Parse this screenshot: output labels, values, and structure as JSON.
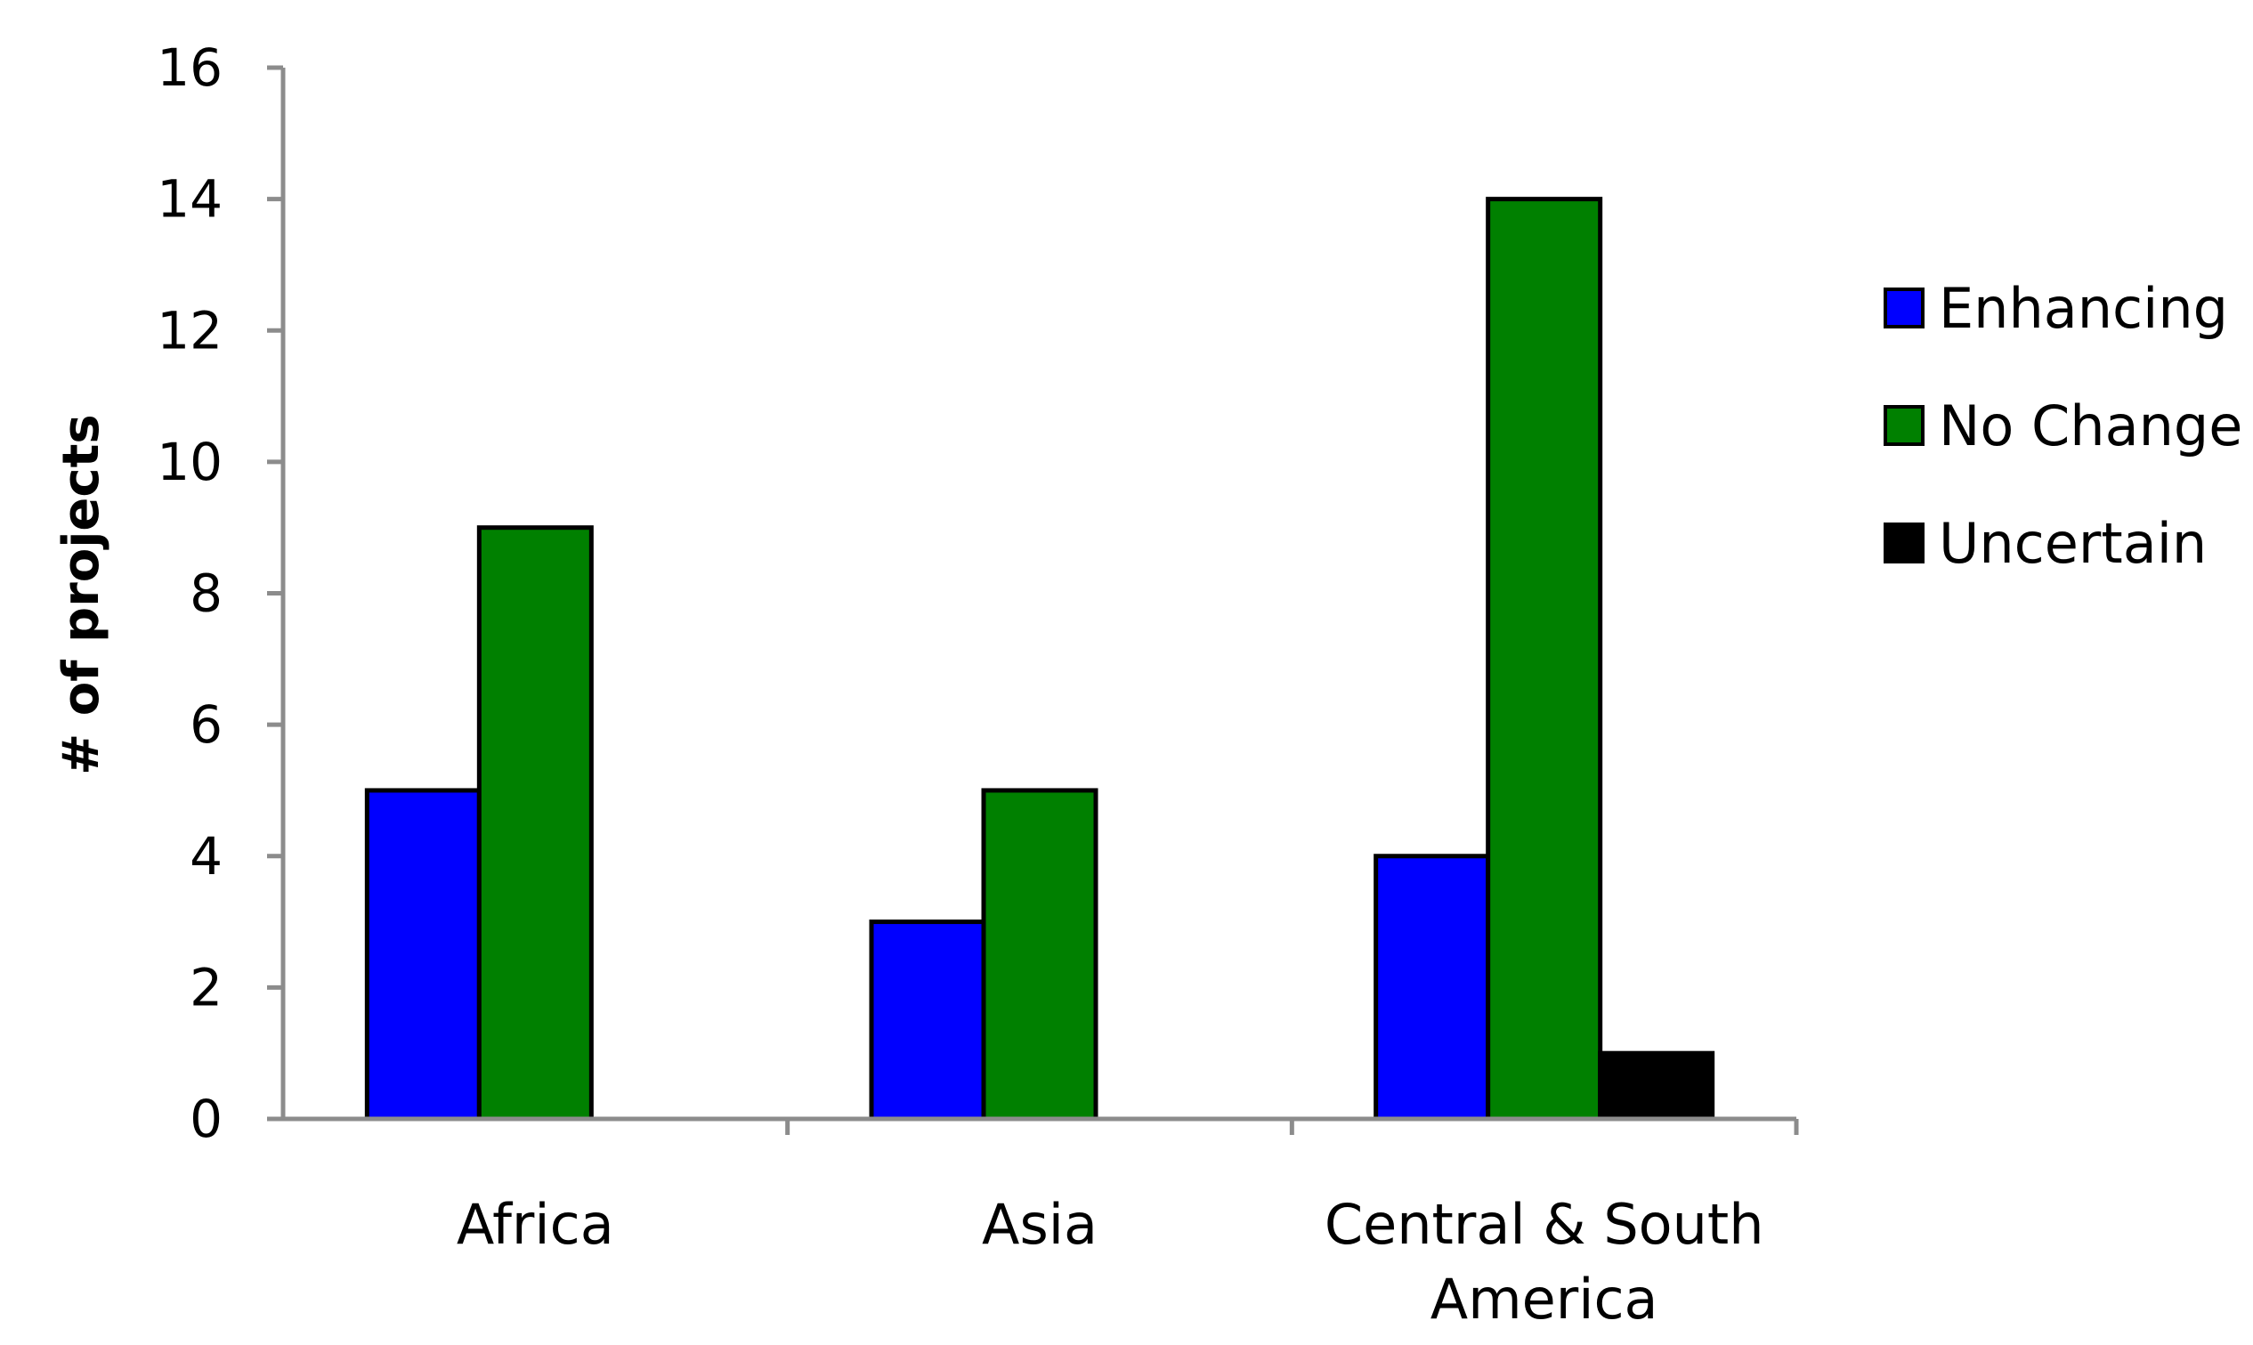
{
  "chart_data": {
    "type": "bar",
    "title": "",
    "xlabel": "",
    "ylabel": "# of projects",
    "categories": [
      [
        "Africa"
      ],
      [
        "Asia"
      ],
      [
        "Central & South",
        "America"
      ]
    ],
    "series": [
      {
        "name": "Enhancing",
        "color": "#0000ff",
        "values": [
          5,
          3,
          4
        ]
      },
      {
        "name": "No Change",
        "color": "#008000",
        "values": [
          9,
          5,
          14
        ]
      },
      {
        "name": "Uncertain",
        "color": "#000000",
        "values": [
          0,
          0,
          1
        ]
      }
    ],
    "ylim": [
      0,
      16
    ],
    "yticks": [
      0,
      2,
      4,
      6,
      8,
      10,
      12,
      14,
      16
    ],
    "grid": false,
    "legend_position": "right"
  }
}
